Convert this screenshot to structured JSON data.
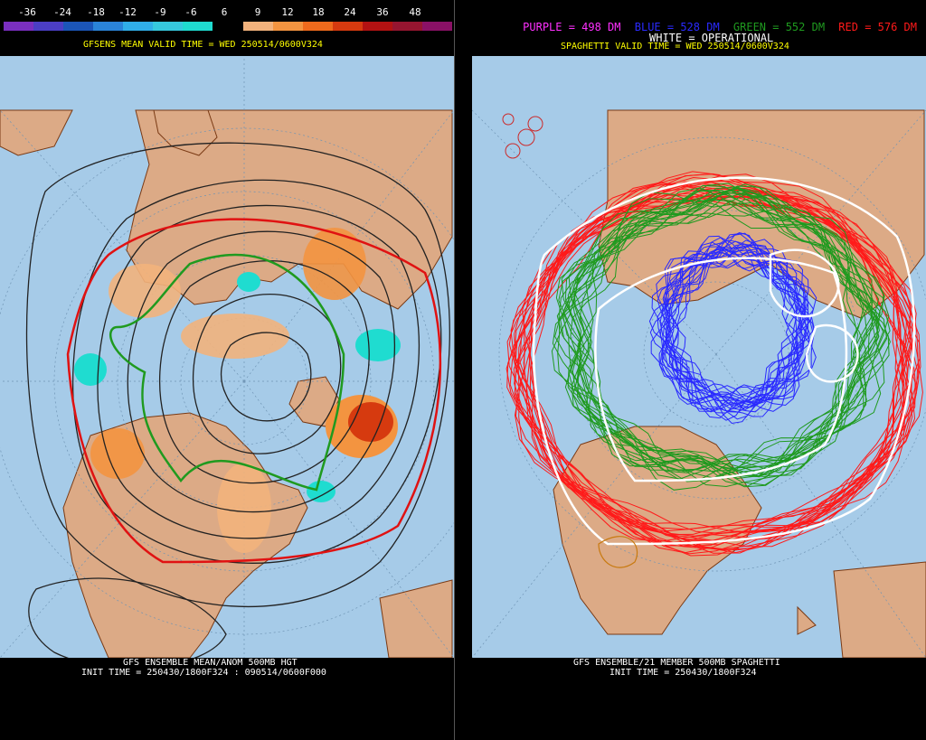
{
  "left": {
    "legend_values": [
      "-36",
      "-24",
      "-18",
      "-12",
      "-9",
      "-6",
      "6",
      "9",
      "12",
      "18",
      "24",
      "36",
      "48"
    ],
    "legend_colors": [
      "#7a2fc0",
      "#4b3ec4",
      "#1b55b8",
      "#2a83d8",
      "#30aee8",
      "#36c9de",
      "#1fdcd0",
      "#000000",
      "#f2b27c",
      "#f39440",
      "#ef6a1c",
      "#d63a0f",
      "#b31212",
      "#961530",
      "#8a1166"
    ],
    "valid_time": "GFSENS MEAN VALID TIME = WED 250514/0600V324",
    "bottom_line1": "GFS ENSEMBLE MEAN/ANOM 500MB HGT",
    "bottom_line2": "INIT TIME = 250430/1800F324 : 090514/0600F000"
  },
  "right": {
    "legend": [
      {
        "text": "PURPLE = 498 DM",
        "color": "#ff30ff"
      },
      {
        "text": "BLUE = 528 DM",
        "color": "#2a2aff"
      },
      {
        "text": "GREEN = 552 DM",
        "color": "#1f9a1f"
      },
      {
        "text": "RED = 576 DM",
        "color": "#ff1a1a"
      }
    ],
    "operational": "WHITE = OPERATIONAL",
    "valid_time": "SPAGHETTI VALID TIME = WED 250514/0600V324",
    "bottom_line1": "GFS ENSEMBLE/21 MEMBER 500MB SPAGHETTI",
    "bottom_line2": "INIT TIME = 250430/1800F324"
  },
  "colors": {
    "ocean": "#a6cbe8",
    "land": "#dcaa86",
    "border": "#7a3a14",
    "white_label": "#ffffff"
  }
}
